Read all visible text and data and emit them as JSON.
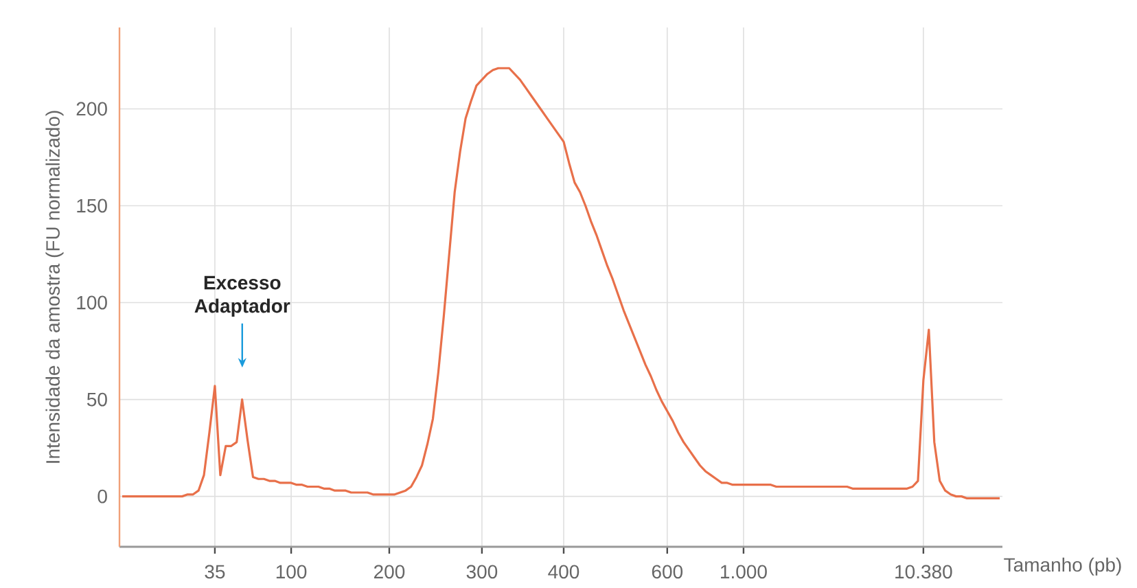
{
  "chart_data": {
    "type": "line",
    "xlabel": "Tamanho (pb)",
    "ylabel": "Intensidade da amostra (FU normalizado)",
    "annotations": [
      "Excesso Adaptador"
    ],
    "ylim": [
      -26,
      242
    ],
    "yticks": [
      0,
      50,
      100,
      150,
      200
    ],
    "grid": true,
    "marker": "none",
    "line_style": "solid",
    "categories": [
      null,
      null,
      null,
      null,
      null,
      null,
      null,
      null,
      null,
      null,
      null,
      null,
      null,
      null,
      null,
      null,
      null,
      "35",
      null,
      null,
      null,
      null,
      null,
      null,
      null,
      null,
      null,
      null,
      null,
      null,
      null,
      "100",
      null,
      null,
      null,
      null,
      null,
      null,
      null,
      null,
      null,
      null,
      null,
      null,
      null,
      null,
      null,
      null,
      null,
      "200",
      null,
      null,
      null,
      null,
      null,
      null,
      null,
      null,
      null,
      null,
      null,
      null,
      null,
      null,
      null,
      null,
      "300",
      null,
      null,
      null,
      null,
      null,
      null,
      null,
      null,
      null,
      null,
      null,
      null,
      null,
      null,
      "400",
      null,
      null,
      null,
      null,
      null,
      null,
      null,
      null,
      null,
      null,
      null,
      null,
      null,
      null,
      null,
      null,
      null,
      null,
      "600",
      null,
      null,
      null,
      null,
      null,
      null,
      null,
      null,
      null,
      null,
      null,
      null,
      null,
      "1.000",
      null,
      null,
      null,
      null,
      null,
      null,
      null,
      null,
      null,
      null,
      null,
      null,
      null,
      null,
      null,
      null,
      null,
      null,
      null,
      null,
      null,
      null,
      null,
      null,
      null,
      null,
      null,
      null,
      null,
      null,
      null,
      null,
      "10.380",
      null,
      null,
      null,
      null,
      null,
      null,
      null,
      null,
      null,
      null,
      null,
      null,
      null,
      null
    ],
    "series": [
      {
        "color": "#e8704a",
        "values": [
          0,
          0,
          0,
          0,
          0,
          0,
          0,
          0,
          0,
          0,
          0,
          0,
          1,
          1,
          3,
          11,
          33,
          57,
          11,
          26,
          26,
          28,
          50,
          29,
          10,
          9,
          9,
          8,
          8,
          7,
          7,
          7,
          6,
          6,
          5,
          5,
          5,
          4,
          4,
          3,
          3,
          3,
          2,
          2,
          2,
          2,
          1,
          1,
          1,
          1,
          1,
          2,
          3,
          5,
          10,
          16,
          27,
          40,
          64,
          93,
          125,
          157,
          178,
          195,
          204,
          212,
          215,
          218,
          220,
          221,
          221,
          221,
          218,
          215,
          211,
          207,
          203,
          199,
          195,
          191,
          187,
          183,
          172,
          162,
          157,
          150,
          142,
          135,
          127,
          119,
          112,
          104,
          96,
          89,
          82,
          75,
          68,
          62,
          55,
          49,
          44,
          39,
          33,
          28,
          24,
          20,
          16,
          13,
          11,
          9,
          7,
          7,
          6,
          6,
          6,
          6,
          6,
          6,
          6,
          6,
          5,
          5,
          5,
          5,
          5,
          5,
          5,
          5,
          5,
          5,
          5,
          5,
          5,
          5,
          4,
          4,
          4,
          4,
          4,
          4,
          4,
          4,
          4,
          4,
          4,
          5,
          8,
          60,
          86,
          28,
          8,
          3,
          1,
          0,
          0,
          -1,
          -1,
          -1,
          -1,
          -1,
          -1,
          -1
        ]
      }
    ]
  }
}
